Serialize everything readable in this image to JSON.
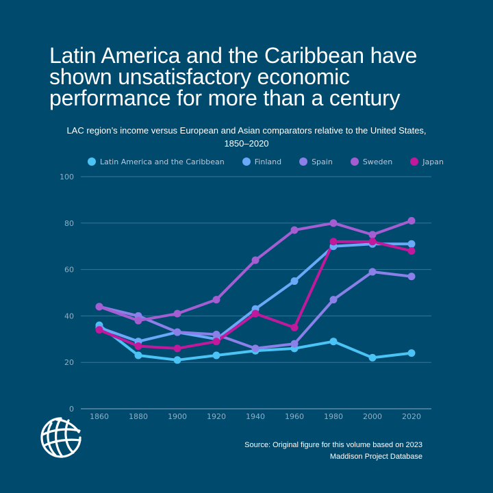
{
  "header": {
    "title_lines": [
      "Latin America and the Caribbean have",
      "shown unsatisfactory economic",
      "performance for more than a century"
    ],
    "subtitle_lines": [
      "LAC region’s income versus European and Asian comparators relative to the United States,",
      "1850–2020"
    ]
  },
  "footer": {
    "source_lines": [
      "Source: Original figure for this volume based on 2023",
      "Maddison Project Database"
    ],
    "logo_icon": "world-bank-globe-icon"
  },
  "chart_data": {
    "type": "line",
    "title": "LAC region’s income versus European and Asian comparators relative to the United States, 1850–2020",
    "xlabel": "",
    "ylabel": "",
    "x": [
      1860,
      1880,
      1900,
      1920,
      1940,
      1960,
      1980,
      2000,
      2020
    ],
    "x_tick_labels": [
      "1860",
      "1880",
      "1900",
      "1920",
      "1940",
      "1960",
      "1980",
      "2000",
      "2020"
    ],
    "ylim": [
      0,
      100
    ],
    "y_ticks": [
      0,
      20,
      40,
      60,
      80,
      100
    ],
    "y_tick_labels": [
      "0",
      "20",
      "40",
      "60",
      "80",
      "100"
    ],
    "grid": true,
    "legend_position": "top",
    "series": [
      {
        "name": "Latin America and the Caribbean",
        "color": "#4cc3f5",
        "values": [
          36,
          23,
          21,
          23,
          25,
          26,
          29,
          22,
          24
        ]
      },
      {
        "name": "Finland",
        "color": "#6aa8f8",
        "values": [
          35,
          29,
          33,
          30,
          43,
          55,
          70,
          71,
          71
        ]
      },
      {
        "name": "Spain",
        "color": "#8a80e8",
        "values": [
          44,
          40,
          33,
          32,
          26,
          28,
          47,
          59,
          57
        ]
      },
      {
        "name": "Sweden",
        "color": "#a45ed2",
        "values": [
          44,
          38,
          41,
          47,
          64,
          77,
          80,
          75,
          81
        ]
      },
      {
        "name": "Japan",
        "color": "#c0199c",
        "values": [
          34,
          27,
          26,
          29,
          41,
          35,
          72,
          72,
          68
        ]
      }
    ]
  }
}
